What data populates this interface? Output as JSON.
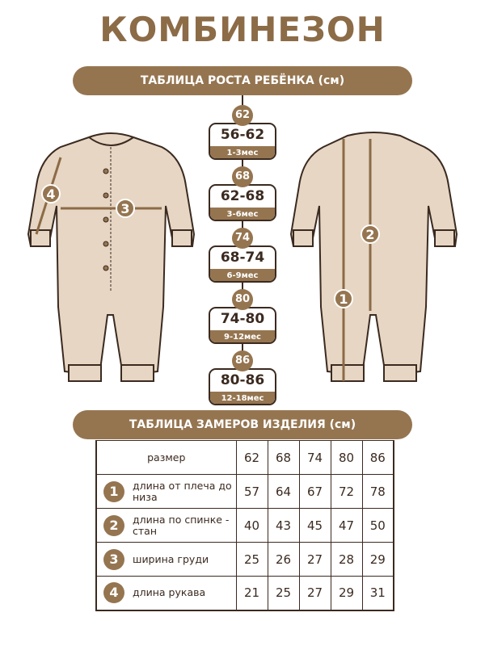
{
  "title": "КОМБИНЕЗОН",
  "growth_banner": "ТАБЛИЦА РОСТА РЕБЁНКА (см)",
  "sizes": [
    {
      "size": "62",
      "height": "56-62",
      "age": "1-3мес"
    },
    {
      "size": "68",
      "height": "62-68",
      "age": "3-6мес"
    },
    {
      "size": "74",
      "height": "68-74",
      "age": "6-9мес"
    },
    {
      "size": "80",
      "height": "74-80",
      "age": "9-12мес"
    },
    {
      "size": "86",
      "height": "80-86",
      "age": "12-18мес"
    }
  ],
  "front_markers": [
    "4",
    "3"
  ],
  "back_markers": [
    "2",
    "1"
  ],
  "colors": {
    "brown": "#957550",
    "outline": "#3b2a20",
    "garment": "#e6d6c3"
  },
  "measure_banner": "ТАБЛИЦА ЗАМЕРОВ ИЗДЕЛИЯ (см)",
  "table": {
    "header_label": "размер",
    "header_sizes": [
      "62",
      "68",
      "74",
      "80",
      "86"
    ],
    "rows": [
      {
        "num": "1",
        "label": "длина от плеча до низа",
        "values": [
          "57",
          "64",
          "67",
          "72",
          "78"
        ]
      },
      {
        "num": "2",
        "label": "длина по спинке - стан",
        "values": [
          "40",
          "43",
          "45",
          "47",
          "50"
        ]
      },
      {
        "num": "3",
        "label": "ширина груди",
        "values": [
          "25",
          "26",
          "27",
          "28",
          "29"
        ]
      },
      {
        "num": "4",
        "label": "длина рукава",
        "values": [
          "21",
          "25",
          "27",
          "29",
          "31"
        ]
      }
    ]
  }
}
